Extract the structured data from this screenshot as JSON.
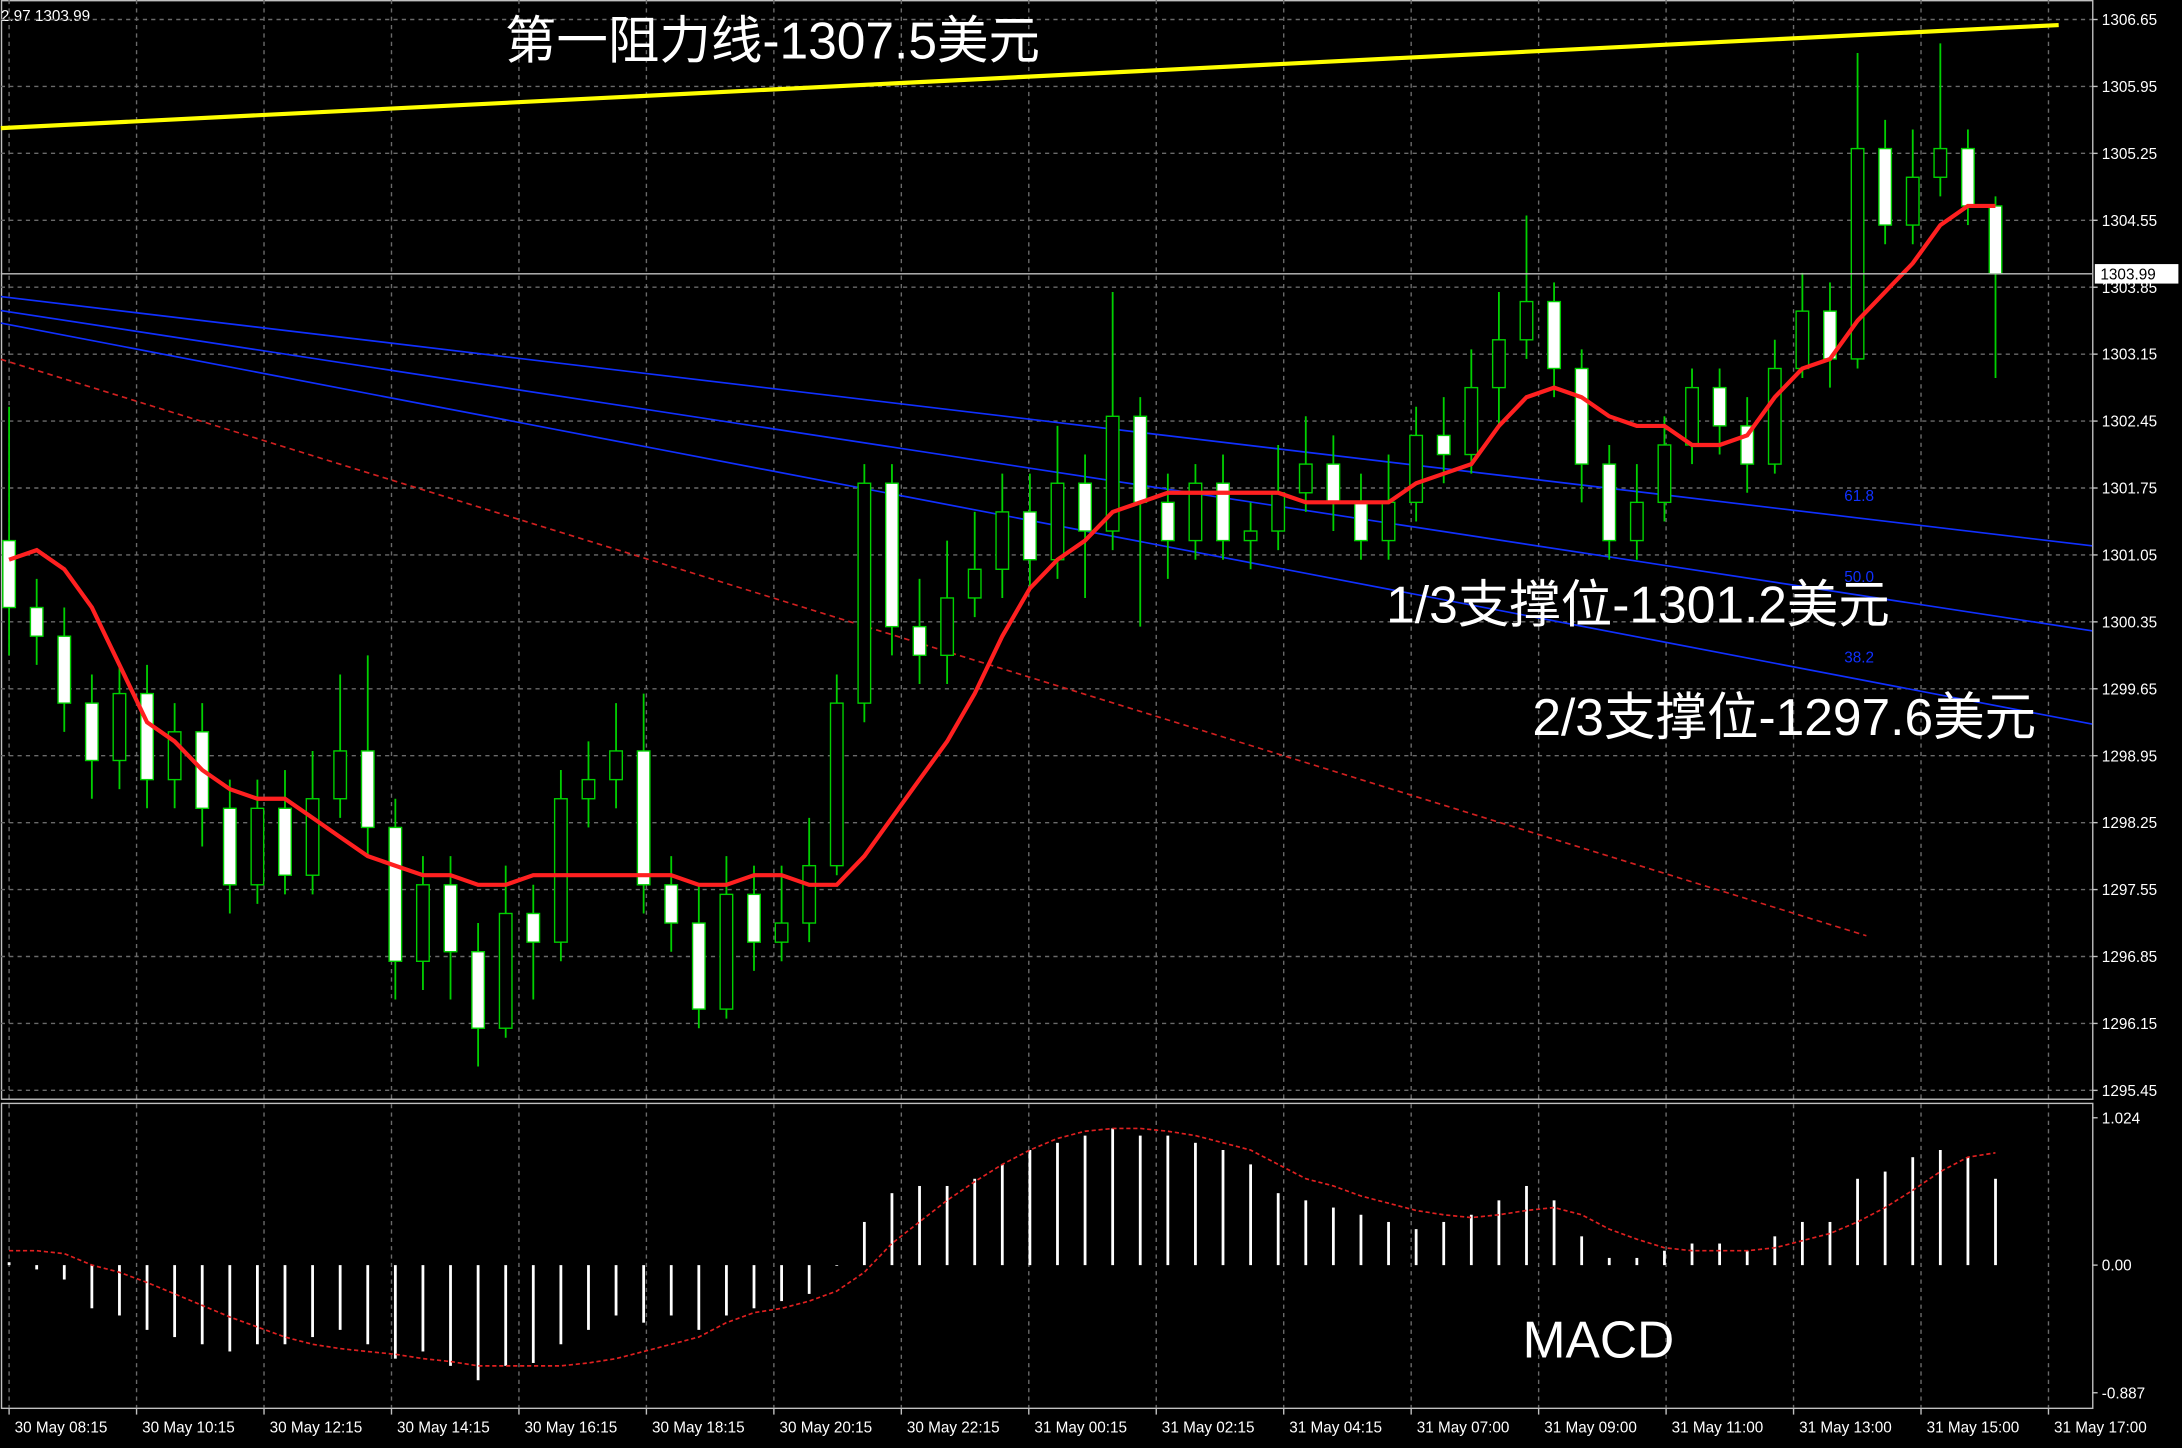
{
  "chart_data": [
    {
      "type": "candlestick",
      "header_text": "2.97 1303.99",
      "xlim": [
        -0.3,
        75.5
      ],
      "xticks": [
        {
          "value": 0,
          "label": "30 May 08:15"
        },
        {
          "value": 4.62,
          "label": "30 May 10:15"
        },
        {
          "value": 9.24,
          "label": "30 May 12:15"
        },
        {
          "value": 13.86,
          "label": "30 May 14:15"
        },
        {
          "value": 18.48,
          "label": "30 May 16:15"
        },
        {
          "value": 23.1,
          "label": "30 May 18:15"
        },
        {
          "value": 27.72,
          "label": "30 May 20:15"
        },
        {
          "value": 32.34,
          "label": "30 May 22:15"
        },
        {
          "value": 36.96,
          "label": "31 May 00:15"
        },
        {
          "value": 41.58,
          "label": "31 May 02:15"
        },
        {
          "value": 46.2,
          "label": "31 May 04:15"
        },
        {
          "value": 50.82,
          "label": "31 May 07:00"
        },
        {
          "value": 55.44,
          "label": "31 May 09:00"
        },
        {
          "value": 60.06,
          "label": "31 May 11:00"
        },
        {
          "value": 64.68,
          "label": "31 May 13:00"
        },
        {
          "value": 69.3,
          "label": "31 May 15:00"
        },
        {
          "value": 73.92,
          "label": "31 May 17:00"
        }
      ],
      "ylim": [
        1295.35,
        1306.854
      ],
      "yticks": [
        1306.65,
        1305.95,
        1305.25,
        1304.55,
        1303.85,
        1303.15,
        1302.45,
        1301.75,
        1301.05,
        1300.35,
        1299.65,
        1298.95,
        1298.25,
        1297.55,
        1296.85,
        1296.15,
        1295.45
      ],
      "grid": true,
      "up_color": "#000000",
      "down_color": "#ffffff",
      "wick_color": "#00d000",
      "open": [
        1301.2,
        1300.5,
        1300.2,
        1299.5,
        1298.9,
        1299.6,
        1298.7,
        1299.2,
        1298.4,
        1297.6,
        1298.4,
        1297.7,
        1298.5,
        1299.0,
        1298.2,
        1296.8,
        1297.6,
        1296.9,
        1296.1,
        1297.3,
        1297.0,
        1298.5,
        1298.7,
        1299.0,
        1297.6,
        1297.2,
        1296.3,
        1297.5,
        1297.0,
        1297.2,
        1297.8,
        1299.5,
        1301.8,
        1300.3,
        1300.0,
        1300.6,
        1300.9,
        1301.5,
        1301.0,
        1301.8,
        1301.3,
        1302.5,
        1301.6,
        1301.2,
        1301.8,
        1301.2,
        1301.3,
        1301.7,
        1302.0,
        1301.6,
        1301.2,
        1301.6,
        1302.3,
        1302.1,
        1302.8,
        1303.3,
        1303.7,
        1303.0,
        1302.0,
        1301.2,
        1301.6,
        1302.2,
        1302.8,
        1302.4,
        1302.0,
        1303.0,
        1303.6,
        1303.1,
        1305.3,
        1304.5,
        1305.0,
        1305.3,
        1304.7
      ],
      "high": [
        1302.6,
        1300.8,
        1300.5,
        1299.8,
        1299.9,
        1299.9,
        1299.5,
        1299.5,
        1298.7,
        1298.7,
        1298.8,
        1299.0,
        1299.8,
        1300.0,
        1298.5,
        1297.9,
        1297.9,
        1297.2,
        1297.8,
        1297.6,
        1298.8,
        1299.1,
        1299.5,
        1299.6,
        1297.9,
        1297.6,
        1297.9,
        1297.8,
        1297.8,
        1298.3,
        1299.8,
        1302.0,
        1302.0,
        1300.8,
        1301.2,
        1301.5,
        1301.9,
        1301.9,
        1302.4,
        1302.1,
        1303.8,
        1302.7,
        1301.9,
        1302.0,
        1302.1,
        1301.6,
        1302.2,
        1302.5,
        1302.3,
        1301.9,
        1302.1,
        1302.6,
        1302.7,
        1303.2,
        1303.8,
        1304.6,
        1303.9,
        1303.2,
        1302.2,
        1302.0,
        1302.5,
        1303.0,
        1303.0,
        1302.7,
        1303.3,
        1304.0,
        1303.9,
        1306.3,
        1305.6,
        1305.5,
        1306.4,
        1305.5,
        1304.8
      ],
      "low": [
        1300.0,
        1299.9,
        1299.2,
        1298.5,
        1298.6,
        1298.4,
        1298.4,
        1298.0,
        1297.3,
        1297.4,
        1297.5,
        1297.5,
        1298.3,
        1297.9,
        1296.4,
        1296.5,
        1296.4,
        1295.7,
        1296.0,
        1296.4,
        1296.8,
        1298.2,
        1298.4,
        1297.3,
        1296.9,
        1296.1,
        1296.2,
        1296.7,
        1296.8,
        1297.0,
        1297.7,
        1299.3,
        1300.0,
        1299.7,
        1299.7,
        1300.4,
        1300.6,
        1300.7,
        1300.8,
        1300.6,
        1301.1,
        1300.3,
        1300.8,
        1301.0,
        1301.0,
        1300.9,
        1301.1,
        1301.5,
        1301.3,
        1301.0,
        1301.0,
        1301.4,
        1301.8,
        1301.9,
        1302.4,
        1303.1,
        1302.7,
        1301.6,
        1301.0,
        1301.0,
        1301.4,
        1302.0,
        1302.1,
        1301.7,
        1301.9,
        1302.9,
        1302.8,
        1303.0,
        1304.3,
        1304.3,
        1304.8,
        1304.5,
        1302.9
      ],
      "close": [
        1300.5,
        1300.2,
        1299.5,
        1298.9,
        1299.6,
        1298.7,
        1299.2,
        1298.4,
        1297.6,
        1298.4,
        1297.7,
        1298.5,
        1299.0,
        1298.2,
        1296.8,
        1297.6,
        1296.9,
        1296.1,
        1297.3,
        1297.0,
        1298.5,
        1298.7,
        1299.0,
        1297.6,
        1297.2,
        1296.3,
        1297.5,
        1297.0,
        1297.2,
        1297.8,
        1299.5,
        1301.8,
        1300.3,
        1300.0,
        1300.6,
        1300.9,
        1301.5,
        1301.0,
        1301.8,
        1301.3,
        1302.5,
        1301.6,
        1301.2,
        1301.8,
        1301.2,
        1301.3,
        1301.7,
        1302.0,
        1301.6,
        1301.2,
        1301.6,
        1302.3,
        1302.1,
        1302.8,
        1303.3,
        1303.7,
        1303.0,
        1302.0,
        1301.2,
        1301.6,
        1302.2,
        1302.8,
        1302.4,
        1302.0,
        1303.0,
        1303.6,
        1303.1,
        1305.3,
        1304.5,
        1305.0,
        1305.3,
        1304.7,
        1303.99
      ],
      "ma": {
        "color": "#ff2020",
        "values": [
          1301.0,
          1301.1,
          1300.9,
          1300.5,
          1299.9,
          1299.3,
          1299.1,
          1298.8,
          1298.6,
          1298.5,
          1298.5,
          1298.3,
          1298.1,
          1297.9,
          1297.8,
          1297.7,
          1297.7,
          1297.6,
          1297.6,
          1297.7,
          1297.7,
          1297.7,
          1297.7,
          1297.7,
          1297.7,
          1297.6,
          1297.6,
          1297.7,
          1297.7,
          1297.6,
          1297.6,
          1297.9,
          1298.3,
          1298.7,
          1299.1,
          1299.6,
          1300.2,
          1300.7,
          1301.0,
          1301.2,
          1301.5,
          1301.6,
          1301.7,
          1301.7,
          1301.7,
          1301.7,
          1301.7,
          1301.6,
          1301.6,
          1301.6,
          1301.6,
          1301.8,
          1301.9,
          1302.0,
          1302.4,
          1302.7,
          1302.8,
          1302.7,
          1302.5,
          1302.4,
          1302.4,
          1302.2,
          1302.2,
          1302.3,
          1302.7,
          1303.0,
          1303.1,
          1303.5,
          1303.8,
          1304.1,
          1304.5,
          1304.7,
          1304.7
        ]
      },
      "trendlines": [
        {
          "color": "#ffff00",
          "dashed": false,
          "x": [
            -0.3,
            74.29
          ],
          "y": [
            1305.514,
            1306.592
          ]
        },
        {
          "color": "#1030ff",
          "dashed": false,
          "x": [
            -0.3,
            75.5
          ],
          "y": [
            1303.752,
            1301.145
          ]
        },
        {
          "color": "#1030ff",
          "dashed": false,
          "x": [
            -0.3,
            75.5
          ],
          "y": [
            1303.606,
            1300.256
          ]
        },
        {
          "color": "#1030ff",
          "dashed": false,
          "x": [
            -0.3,
            75.5
          ],
          "y": [
            1303.475,
            1299.281
          ]
        },
        {
          "color": "#d02020",
          "dashed": true,
          "x": [
            -0.3,
            67.32
          ],
          "y": [
            1303.096,
            1297.067
          ]
        }
      ],
      "fib_labels": [
        "61.8",
        "50.0",
        "38.2"
      ],
      "annotations": [
        "第一阻力线-1307.5美元",
        "1/3支撑位-1301.2美元",
        "2/3支撑位-1297.6美元"
      ],
      "current_price": 1303.99
    },
    {
      "type": "macd",
      "title": "MACD",
      "ylim": [
        -1.0,
        1.119
      ],
      "yticks": [
        1.024,
        {
          "value": 0,
          "label": "0.00"
        },
        -0.887
      ],
      "histogram": {
        "color": "#ffffff",
        "values": [
          0.02,
          -0.03,
          -0.1,
          -0.3,
          -0.35,
          -0.45,
          -0.5,
          -0.55,
          -0.6,
          -0.55,
          -0.55,
          -0.5,
          -0.45,
          -0.55,
          -0.65,
          -0.6,
          -0.7,
          -0.8,
          -0.7,
          -0.68,
          -0.55,
          -0.45,
          -0.35,
          -0.4,
          -0.35,
          -0.45,
          -0.35,
          -0.3,
          -0.25,
          -0.2,
          0.0,
          0.3,
          0.5,
          0.55,
          0.55,
          0.6,
          0.7,
          0.8,
          0.85,
          0.9,
          0.95,
          0.9,
          0.9,
          0.85,
          0.8,
          0.7,
          0.5,
          0.45,
          0.4,
          0.35,
          0.3,
          0.25,
          0.3,
          0.35,
          0.45,
          0.55,
          0.45,
          0.2,
          0.05,
          0.05,
          0.1,
          0.15,
          0.15,
          0.1,
          0.2,
          0.3,
          0.3,
          0.6,
          0.65,
          0.75,
          0.8,
          0.75,
          0.6
        ]
      },
      "signal": {
        "color": "#e02020",
        "values": [
          0.1,
          0.1,
          0.08,
          0.0,
          -0.05,
          -0.12,
          -0.2,
          -0.28,
          -0.36,
          -0.43,
          -0.5,
          -0.55,
          -0.58,
          -0.6,
          -0.62,
          -0.65,
          -0.67,
          -0.7,
          -0.7,
          -0.7,
          -0.7,
          -0.68,
          -0.65,
          -0.6,
          -0.55,
          -0.5,
          -0.4,
          -0.33,
          -0.3,
          -0.25,
          -0.18,
          -0.05,
          0.15,
          0.3,
          0.45,
          0.58,
          0.7,
          0.8,
          0.88,
          0.93,
          0.95,
          0.95,
          0.93,
          0.9,
          0.85,
          0.8,
          0.7,
          0.6,
          0.55,
          0.48,
          0.43,
          0.38,
          0.35,
          0.33,
          0.35,
          0.38,
          0.4,
          0.35,
          0.25,
          0.18,
          0.12,
          0.1,
          0.1,
          0.1,
          0.12,
          0.17,
          0.22,
          0.3,
          0.4,
          0.52,
          0.65,
          0.75,
          0.78
        ]
      }
    }
  ]
}
